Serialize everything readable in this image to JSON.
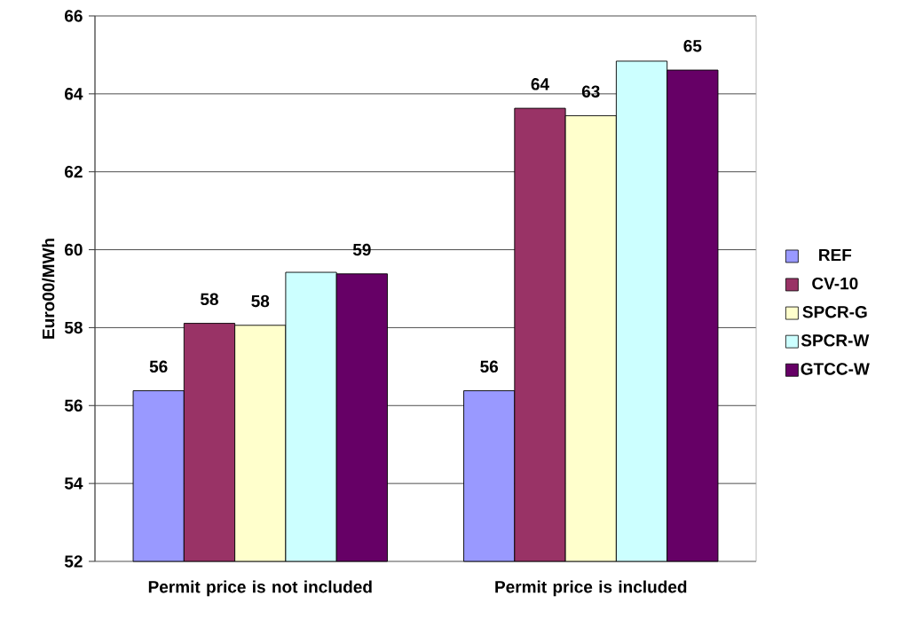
{
  "chart_data": {
    "type": "bar",
    "ylabel": "Euro00/MWh",
    "categories": [
      "Permit price is not included",
      "Permit price is included"
    ],
    "series": [
      {
        "name": "REF",
        "color": "#9999ff",
        "values": [
          56.38,
          56.38
        ],
        "value_labels": [
          "56",
          "56"
        ]
      },
      {
        "name": "CV-10",
        "color": "#993366",
        "values": [
          58.11,
          63.63
        ],
        "value_labels": [
          "58",
          "64"
        ]
      },
      {
        "name": "SPCR-G",
        "color": "#ffffcc",
        "values": [
          58.06,
          63.44
        ],
        "value_labels": [
          "58",
          "63"
        ]
      },
      {
        "name": "SPCR-W",
        "color": "#ccffff",
        "values": [
          59.42,
          64.84
        ],
        "value_labels": [
          null,
          null
        ]
      },
      {
        "name": "GTCC-W",
        "color": "#660066",
        "values": [
          59.38,
          64.61
        ],
        "value_labels": [
          "59",
          "65"
        ]
      }
    ],
    "ylim": [
      52,
      66
    ],
    "yticks": [
      52,
      54,
      56,
      58,
      60,
      62,
      64,
      66
    ],
    "grid": "y",
    "legend": "right"
  }
}
